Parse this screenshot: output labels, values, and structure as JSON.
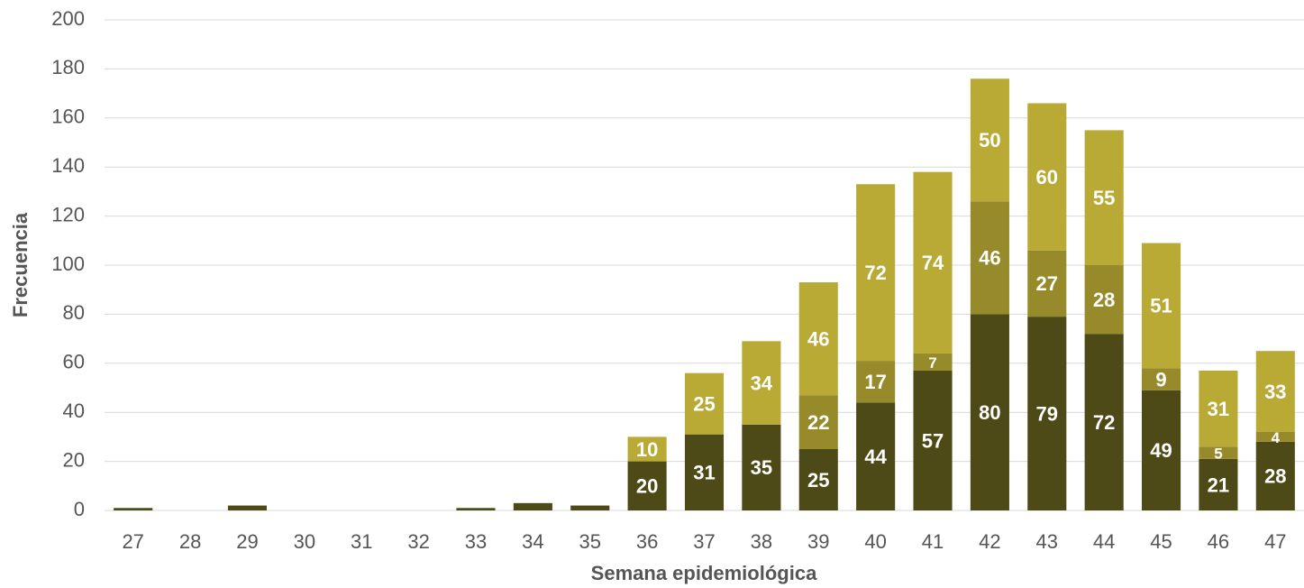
{
  "chart_data": {
    "type": "stacked_bar",
    "x_label": "Semana epidemiológica",
    "y_label": "Frecuencia",
    "categories": [
      "27",
      "28",
      "29",
      "30",
      "31",
      "32",
      "33",
      "34",
      "35",
      "36",
      "37",
      "38",
      "39",
      "40",
      "41",
      "42",
      "43",
      "44",
      "45",
      "46",
      "47"
    ],
    "series": [
      {
        "color": "#4d4a17",
        "values": [
          1,
          0,
          2,
          0,
          0,
          0,
          1,
          3,
          2,
          20,
          31,
          35,
          25,
          44,
          57,
          80,
          79,
          72,
          49,
          21,
          28
        ]
      },
      {
        "color": "#978a2b",
        "values": [
          0,
          0,
          0,
          0,
          0,
          0,
          0,
          0,
          0,
          0,
          0,
          0,
          22,
          17,
          7,
          46,
          27,
          28,
          9,
          5,
          4
        ]
      },
      {
        "color": "#b8aa35",
        "values": [
          0,
          0,
          0,
          0,
          0,
          0,
          0,
          0,
          0,
          10,
          25,
          34,
          46,
          72,
          74,
          50,
          60,
          55,
          51,
          31,
          33
        ]
      }
    ],
    "ylim": [
      0,
      200
    ],
    "yticks": [
      0,
      20,
      40,
      60,
      80,
      100,
      120,
      140,
      160,
      180,
      200
    ],
    "grid": true
  }
}
